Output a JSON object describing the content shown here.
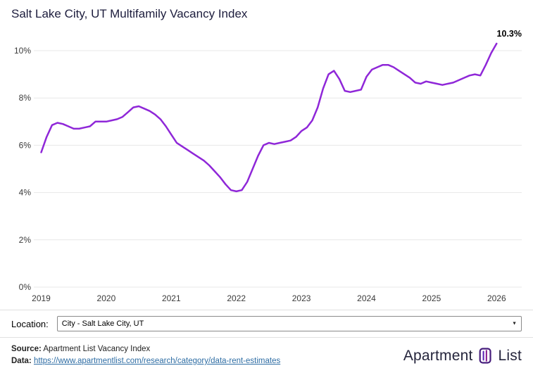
{
  "title": "Salt Lake City, UT Multifamily Vacancy Index",
  "chart_data": {
    "type": "line",
    "title": "Salt Lake City, UT Multifamily Vacancy Index",
    "x_tick_labels": [
      "2019",
      "2020",
      "2021",
      "2022",
      "2023",
      "2024",
      "2025",
      "2026"
    ],
    "y_ticks": [
      0,
      2,
      4,
      6,
      8,
      10
    ],
    "y_tick_labels": [
      "0%",
      "2%",
      "4%",
      "6%",
      "8%",
      "10%"
    ],
    "ylim": [
      0,
      11
    ],
    "grid": "horizontal",
    "points_per_year": 12,
    "x_start": "2019-01",
    "x_end": "2026-01",
    "series": [
      {
        "name": "Multifamily Vacancy Index",
        "color": "#8f27d8",
        "values": [
          5.7,
          6.35,
          6.85,
          6.95,
          6.9,
          6.8,
          6.7,
          6.7,
          6.75,
          6.8,
          7.0,
          7.0,
          7.0,
          7.05,
          7.1,
          7.2,
          7.4,
          7.6,
          7.65,
          7.55,
          7.45,
          7.3,
          7.1,
          6.8,
          6.45,
          6.1,
          5.95,
          5.8,
          5.65,
          5.5,
          5.35,
          5.15,
          4.9,
          4.65,
          4.35,
          4.1,
          4.05,
          4.1,
          4.45,
          5.0,
          5.55,
          6.0,
          6.1,
          6.05,
          6.1,
          6.15,
          6.2,
          6.35,
          6.6,
          6.75,
          7.05,
          7.6,
          8.4,
          9.0,
          9.15,
          8.8,
          8.3,
          8.25,
          8.3,
          8.35,
          8.9,
          9.2,
          9.3,
          9.4,
          9.4,
          9.3,
          9.15,
          9.0,
          8.85,
          8.65,
          8.6,
          8.7,
          8.65,
          8.6,
          8.55,
          8.6,
          8.65,
          8.75,
          8.85,
          8.95,
          9.0,
          8.95,
          9.4,
          9.9,
          10.3
        ]
      }
    ],
    "annotation": {
      "text": "10.3%",
      "value": 10.3,
      "x": "2026-01"
    }
  },
  "location": {
    "label": "Location:",
    "value": "City - Salt Lake City, UT"
  },
  "footer": {
    "source_label": "Source:",
    "source_text": " Apartment List Vacancy Index",
    "data_label": "Data:",
    "data_link_text": "https://www.apartmentlist.com/research/category/data-rent-estimates"
  },
  "logo": {
    "text_left": "Apartment",
    "text_right": "List",
    "brand_color": "#461d7c"
  }
}
